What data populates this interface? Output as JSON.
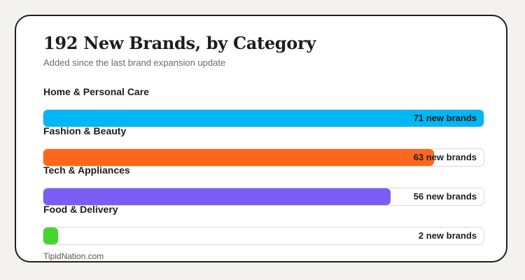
{
  "chart_data": {
    "type": "bar",
    "orientation": "horizontal",
    "title": "192 New Brands, by Category",
    "subtitle": "Added since the last brand expansion update",
    "source": "TipidNation.com",
    "xlim": [
      0,
      71
    ],
    "categories": [
      "Home & Personal Care",
      "Fashion & Beauty",
      "Tech & Appliances",
      "Food & Delivery"
    ],
    "values": [
      71,
      63,
      56,
      2
    ],
    "value_labels": [
      "71 new brands",
      "63 new brands",
      "56 new brands",
      "2 new brands"
    ],
    "colors": [
      "#00b6f5",
      "#ff671d",
      "#7b5cf6",
      "#45d62e"
    ]
  }
}
